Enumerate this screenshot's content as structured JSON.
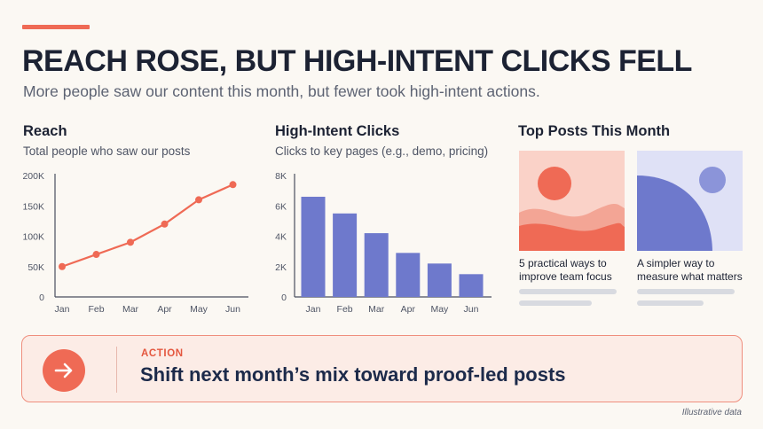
{
  "header": {
    "title": "REACH ROSE, BUT HIGH-INTENT CLICKS FELL",
    "subtitle": "More people saw our content this month, but fewer took high-intent actions."
  },
  "colors": {
    "accent": "#ef6a55",
    "bar": "#6e79cc",
    "axis": "#4a4f5e"
  },
  "chart_data": [
    {
      "type": "line",
      "title": "Reach",
      "subtitle": "Total people who saw our posts",
      "categories": [
        "Jan",
        "Feb",
        "Mar",
        "Apr",
        "May",
        "Jun"
      ],
      "series": [
        {
          "values": [
            50000,
            70000,
            90000,
            120000,
            160000,
            185000
          ]
        }
      ],
      "ylim": [
        0,
        200000
      ],
      "yticks": [
        0,
        50000,
        100000,
        150000,
        200000
      ],
      "ytick_labels": [
        "0",
        "50K",
        "100K",
        "150K",
        "200K"
      ],
      "grid": false
    },
    {
      "type": "bar",
      "title": "High-Intent Clicks",
      "subtitle": "Clicks to key pages (e.g., demo, pricing)",
      "categories": [
        "Jan",
        "Feb",
        "Mar",
        "Apr",
        "May",
        "Jun"
      ],
      "values": [
        6600,
        5500,
        4200,
        2900,
        2200,
        1500
      ],
      "ylim": [
        0,
        8000
      ],
      "yticks": [
        0,
        2000,
        4000,
        6000,
        8000
      ],
      "ytick_labels": [
        "0",
        "2K",
        "4K",
        "6K",
        "8K"
      ],
      "grid": false
    }
  ],
  "top_posts": {
    "title": "Top Posts This Month",
    "posts": [
      {
        "caption": "5 practical ways to improve team focus"
      },
      {
        "caption": "A simpler way to measure what matters"
      }
    ]
  },
  "action": {
    "label": "ACTION",
    "text": "Shift next month’s mix toward proof-led posts",
    "icon": "arrow-right-icon"
  },
  "footnote": "Illustrative data"
}
